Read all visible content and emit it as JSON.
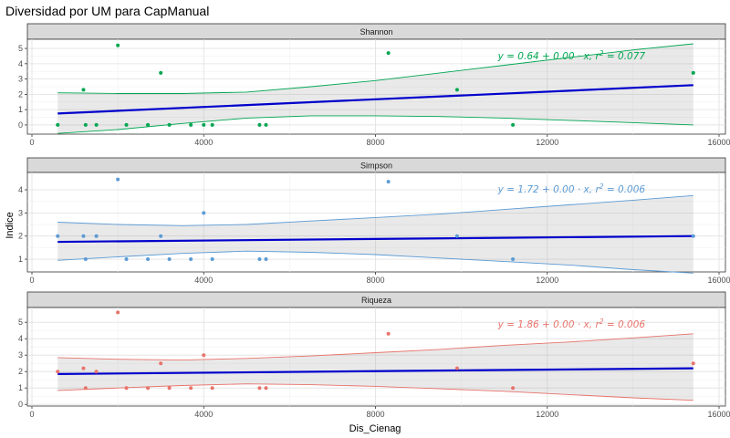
{
  "chart_data": {
    "type": "scatter",
    "title": "Diversidad por UM para CapManual",
    "xlabel": "Dis_Cienag",
    "ylabel": "Indice",
    "xlim": [
      0,
      16000
    ],
    "x_ticks": [
      0,
      4000,
      8000,
      12000,
      16000
    ],
    "x_tick_labels": [
      "0",
      "4000",
      "8000",
      "12000",
      "16000"
    ],
    "grid": true,
    "facets": [
      {
        "strip": "Shannon",
        "color": "#00a651",
        "ylim": [
          -0.6,
          5.6
        ],
        "y_ticks": [
          0,
          1,
          2,
          3,
          4,
          5
        ],
        "y_tick_labels": [
          "0",
          "1",
          "2",
          "3",
          "4",
          "5"
        ],
        "equation": "y = 0.64 + 0.00 · x,  r",
        "r2_exp": "2",
        "r2_value": " = 0.077",
        "points": [
          [
            600,
            0
          ],
          [
            1200,
            2.3
          ],
          [
            1250,
            0
          ],
          [
            1500,
            0
          ],
          [
            2000,
            5.2
          ],
          [
            2200,
            0
          ],
          [
            2700,
            0
          ],
          [
            3000,
            3.4
          ],
          [
            3200,
            0
          ],
          [
            3700,
            0
          ],
          [
            4000,
            0
          ],
          [
            4200,
            0
          ],
          [
            5300,
            0
          ],
          [
            5450,
            0
          ],
          [
            8300,
            4.7
          ],
          [
            9900,
            2.3
          ],
          [
            11200,
            0
          ],
          [
            15400,
            3.4
          ]
        ],
        "fit": [
          [
            600,
            0.75
          ],
          [
            15400,
            2.6
          ]
        ],
        "band_upper": [
          [
            600,
            2.1
          ],
          [
            2000,
            2.05
          ],
          [
            3500,
            2.05
          ],
          [
            5000,
            2.15
          ],
          [
            6500,
            2.5
          ],
          [
            8000,
            2.9
          ],
          [
            9500,
            3.4
          ],
          [
            11000,
            3.9
          ],
          [
            12500,
            4.4
          ],
          [
            14000,
            4.9
          ],
          [
            15400,
            5.3
          ]
        ],
        "band_lower": [
          [
            600,
            -0.55
          ],
          [
            2000,
            -0.3
          ],
          [
            3500,
            0.1
          ],
          [
            5000,
            0.45
          ],
          [
            6500,
            0.6
          ],
          [
            8000,
            0.6
          ],
          [
            9500,
            0.55
          ],
          [
            11000,
            0.45
          ],
          [
            12500,
            0.3
          ],
          [
            14000,
            0.15
          ],
          [
            15400,
            0.0
          ]
        ]
      },
      {
        "strip": "Simpson",
        "color": "#5b9bd5",
        "ylim": [
          0.45,
          4.75
        ],
        "y_ticks": [
          1,
          2,
          3,
          4
        ],
        "y_tick_labels": [
          "1",
          "2",
          "3",
          "4"
        ],
        "equation": "y = 1.72 + 0.00 · x,  r",
        "r2_exp": "2",
        "r2_value": " = 0.006",
        "points": [
          [
            600,
            2
          ],
          [
            1200,
            2
          ],
          [
            1250,
            1
          ],
          [
            1500,
            2
          ],
          [
            2000,
            4.45
          ],
          [
            2200,
            1
          ],
          [
            2700,
            1
          ],
          [
            3000,
            2
          ],
          [
            3200,
            1
          ],
          [
            3700,
            1
          ],
          [
            4000,
            3
          ],
          [
            4200,
            1
          ],
          [
            5300,
            1
          ],
          [
            5450,
            1
          ],
          [
            8300,
            4.35
          ],
          [
            9900,
            2
          ],
          [
            11200,
            1
          ],
          [
            15400,
            2
          ]
        ],
        "fit": [
          [
            600,
            1.75
          ],
          [
            15400,
            2.0
          ]
        ],
        "band_upper": [
          [
            600,
            2.6
          ],
          [
            2000,
            2.5
          ],
          [
            3500,
            2.45
          ],
          [
            5000,
            2.5
          ],
          [
            6500,
            2.65
          ],
          [
            8000,
            2.8
          ],
          [
            9500,
            2.95
          ],
          [
            11000,
            3.15
          ],
          [
            12500,
            3.35
          ],
          [
            14000,
            3.55
          ],
          [
            15400,
            3.75
          ]
        ],
        "band_lower": [
          [
            600,
            0.95
          ],
          [
            2000,
            1.1
          ],
          [
            3500,
            1.25
          ],
          [
            5000,
            1.35
          ],
          [
            6500,
            1.3
          ],
          [
            8000,
            1.2
          ],
          [
            9500,
            1.05
          ],
          [
            11000,
            0.9
          ],
          [
            12500,
            0.75
          ],
          [
            14000,
            0.55
          ],
          [
            15400,
            0.4
          ]
        ]
      },
      {
        "strip": "Riqueza",
        "color": "#e8736b",
        "ylim": [
          -0.1,
          5.9
        ],
        "y_ticks": [
          0,
          1,
          2,
          3,
          4,
          5
        ],
        "y_tick_labels": [
          "0",
          "1",
          "2",
          "3",
          "4",
          "5"
        ],
        "equation": "y = 1.86 + 0.00 · x,  r",
        "r2_exp": "2",
        "r2_value": " = 0.006",
        "points": [
          [
            600,
            2
          ],
          [
            1200,
            2.2
          ],
          [
            1250,
            1
          ],
          [
            1500,
            2
          ],
          [
            2000,
            5.6
          ],
          [
            2200,
            1
          ],
          [
            2700,
            1
          ],
          [
            3000,
            2.5
          ],
          [
            3200,
            1
          ],
          [
            3700,
            1
          ],
          [
            4000,
            3
          ],
          [
            4200,
            1
          ],
          [
            5300,
            1
          ],
          [
            5450,
            1
          ],
          [
            8300,
            4.3
          ],
          [
            9900,
            2.2
          ],
          [
            11200,
            1
          ],
          [
            15400,
            2.5
          ]
        ],
        "fit": [
          [
            600,
            1.85
          ],
          [
            15400,
            2.2
          ]
        ],
        "band_upper": [
          [
            600,
            2.85
          ],
          [
            2000,
            2.75
          ],
          [
            3500,
            2.7
          ],
          [
            5000,
            2.8
          ],
          [
            6500,
            2.95
          ],
          [
            8000,
            3.15
          ],
          [
            9500,
            3.35
          ],
          [
            11000,
            3.6
          ],
          [
            12500,
            3.8
          ],
          [
            14000,
            4.05
          ],
          [
            15400,
            4.3
          ]
        ],
        "band_lower": [
          [
            600,
            0.85
          ],
          [
            2000,
            1.0
          ],
          [
            3500,
            1.15
          ],
          [
            5000,
            1.25
          ],
          [
            6500,
            1.2
          ],
          [
            8000,
            1.1
          ],
          [
            9500,
            0.95
          ],
          [
            11000,
            0.8
          ],
          [
            12500,
            0.6
          ],
          [
            14000,
            0.4
          ],
          [
            15400,
            0.25
          ]
        ]
      }
    ]
  }
}
